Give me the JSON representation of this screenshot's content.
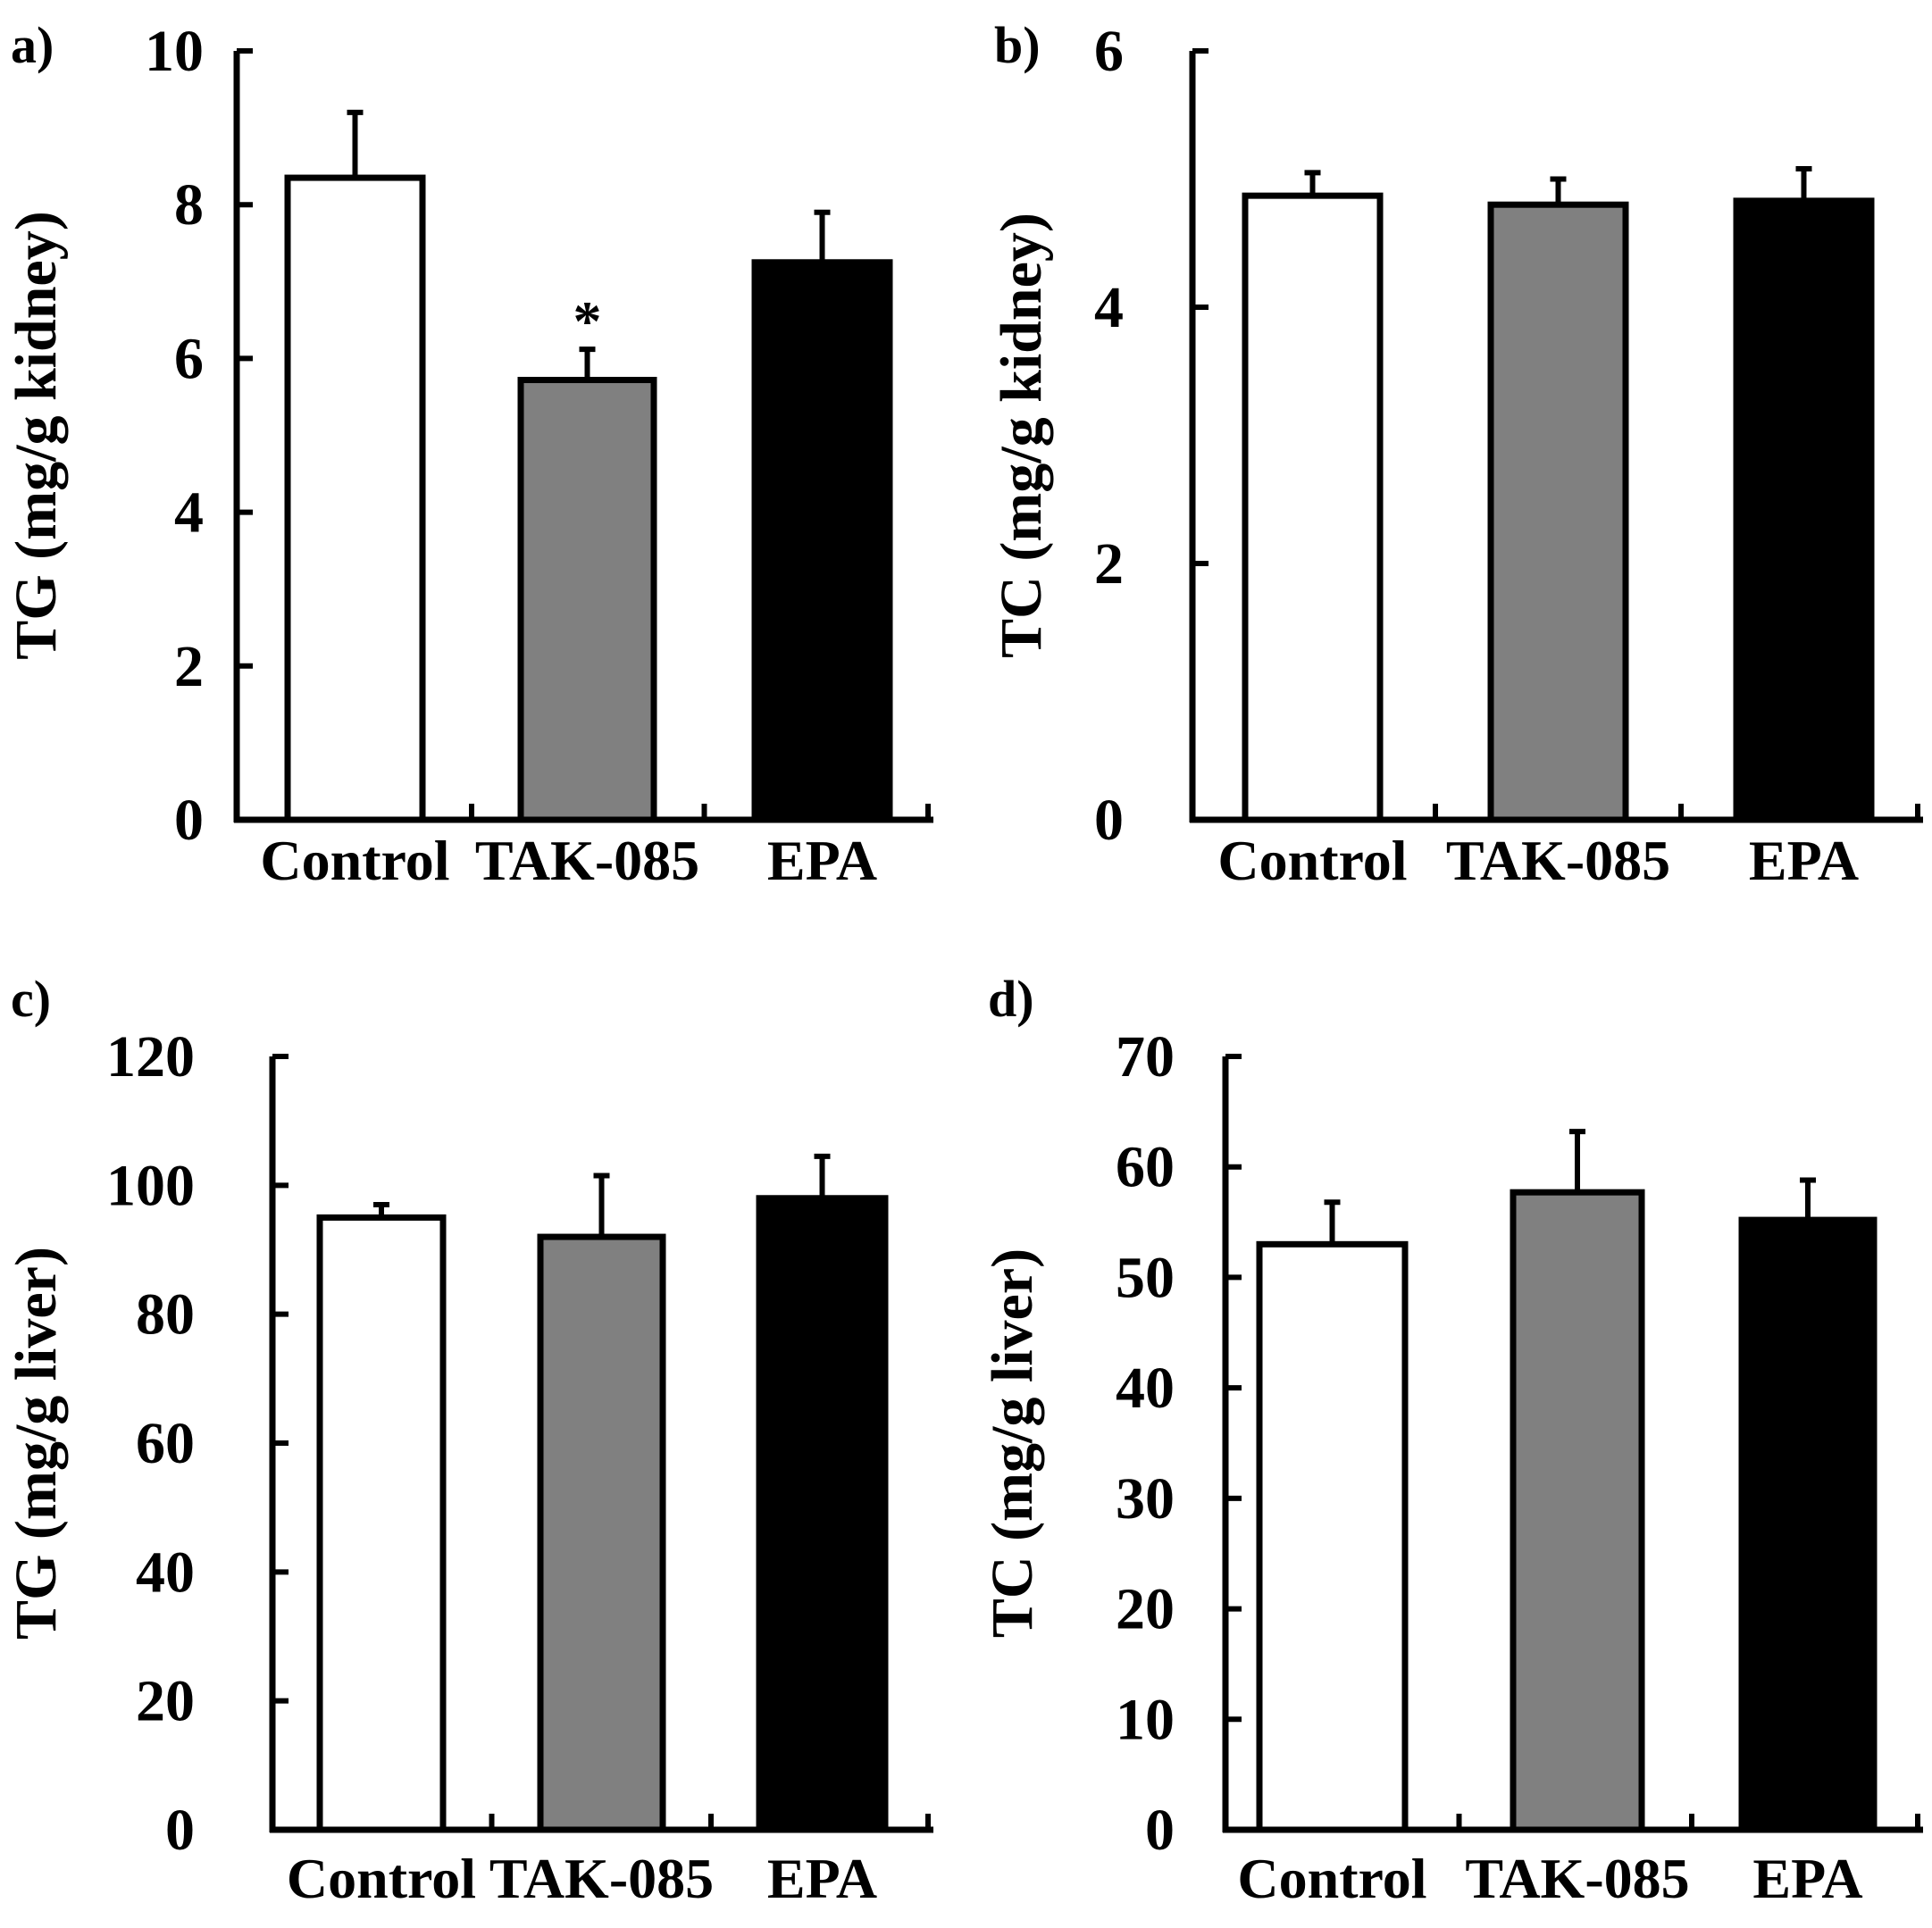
{
  "colors": {
    "control": "#ffffff",
    "tak085": "#808080",
    "epa": "#000000",
    "outline": "#000000"
  },
  "chart_data": [
    {
      "type": "bar",
      "panel": "a)",
      "ylabel": "TG (mg/g kidney)",
      "categories": [
        "Control",
        "TAK-085",
        "EPA"
      ],
      "values": [
        8.35,
        5.72,
        7.25
      ],
      "errors": [
        0.85,
        0.4,
        0.65
      ],
      "yticks": [
        "0",
        "2",
        "4",
        "6",
        "8",
        "10"
      ],
      "ylim": [
        0,
        10
      ],
      "annotations": [
        "",
        "*",
        ""
      ]
    },
    {
      "type": "bar",
      "panel": "b)",
      "ylabel": "TC (mg/g kidney)",
      "categories": [
        "Control",
        "TAK-085",
        "EPA"
      ],
      "values": [
        4.87,
        4.8,
        4.83
      ],
      "errors": [
        0.18,
        0.2,
        0.25
      ],
      "yticks": [
        "0",
        "2",
        "4",
        "6"
      ],
      "ylim": [
        0,
        6
      ],
      "annotations": [
        "",
        "",
        ""
      ]
    },
    {
      "type": "bar",
      "panel": "c)",
      "ylabel": "TG (mg/g liver)",
      "categories": [
        "Control",
        "TAK-085",
        "EPA"
      ],
      "values": [
        95,
        92,
        98
      ],
      "errors": [
        2,
        9.5,
        6.5
      ],
      "yticks": [
        "0",
        "20",
        "40",
        "60",
        "80",
        "100",
        "120"
      ],
      "ylim": [
        0,
        120
      ],
      "annotations": [
        "",
        "",
        ""
      ]
    },
    {
      "type": "bar",
      "panel": "d)",
      "ylabel": "TC (mg/g liver)",
      "categories": [
        "Control",
        "TAK-085",
        "EPA"
      ],
      "values": [
        53,
        57.7,
        55.2
      ],
      "errors": [
        3.8,
        5.5,
        3.6
      ],
      "yticks": [
        "0",
        "10",
        "20",
        "30",
        "40",
        "50",
        "60",
        "70"
      ],
      "ylim": [
        0,
        70
      ],
      "annotations": [
        "",
        "",
        ""
      ]
    }
  ]
}
